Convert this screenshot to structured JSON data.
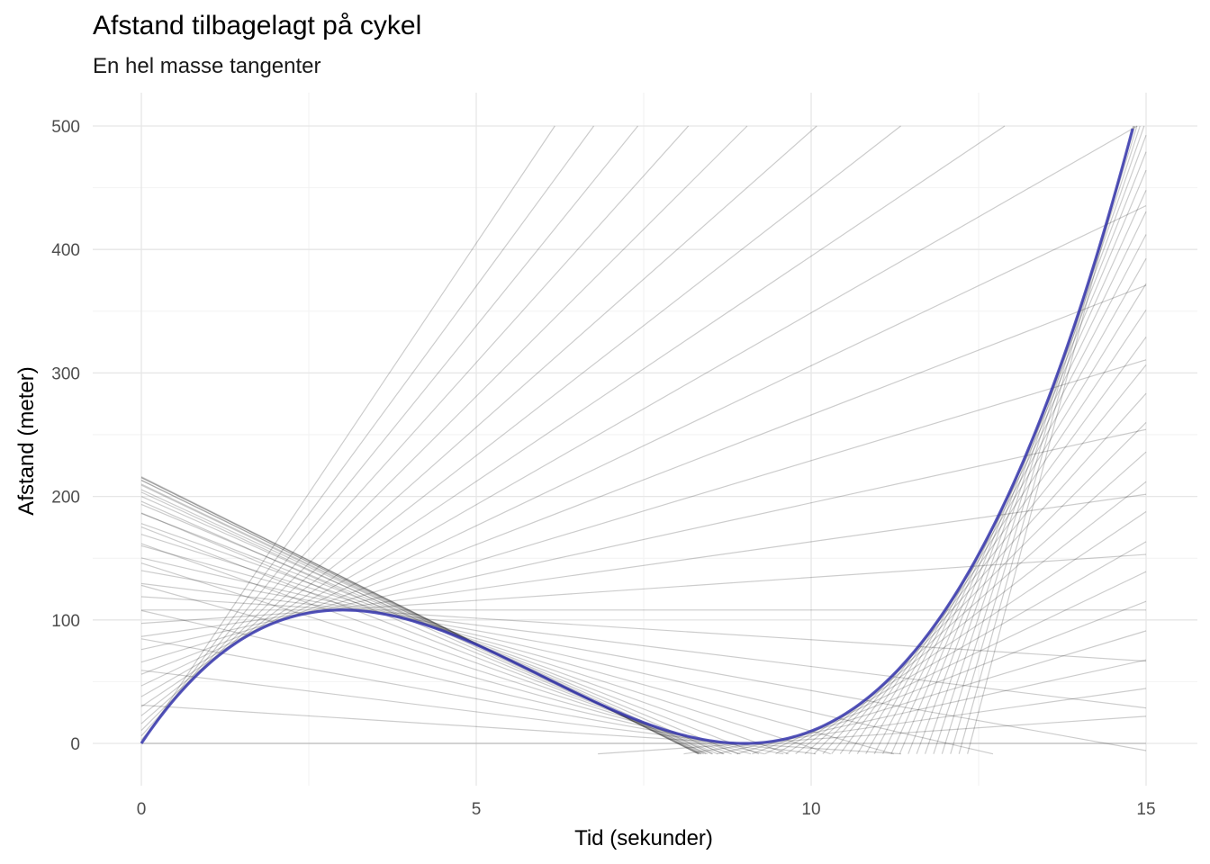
{
  "chart_data": {
    "type": "line",
    "title": "Afstand tilbagelagt på cykel",
    "subtitle": "En hel masse tangenter",
    "xlabel": "Tid (sekunder)",
    "ylabel": "Afstand (meter)",
    "xlim": [
      -0.7,
      15.2
    ],
    "ylim": [
      -33,
      527
    ],
    "x_ticks": [
      0,
      5,
      10,
      15
    ],
    "x_tick_labels": [
      "0",
      "5",
      "10",
      "15"
    ],
    "y_ticks": [
      0,
      100,
      200,
      300,
      400,
      500
    ],
    "y_tick_labels": [
      "0",
      "100",
      "200",
      "300",
      "400",
      "500"
    ],
    "grid": true,
    "curve": {
      "formula": "y = t^3 - 18 t^2 + 81 t",
      "x_range": [
        0,
        14.8
      ],
      "color": "#3b3bb3"
    },
    "tangents": {
      "count": 75,
      "x_range": [
        0,
        14.8
      ],
      "clip": [
        -8.5,
        500
      ],
      "color": "#000000",
      "opacity": 0.2
    }
  }
}
